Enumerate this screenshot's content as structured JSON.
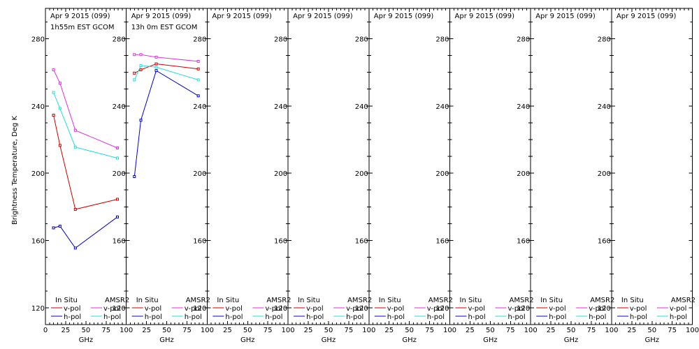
{
  "ylabel": "Brightness Temperature, Deg K",
  "xlabel": "GHz",
  "legend": {
    "left_title": "In Situ",
    "right_title": "AMSR2",
    "vpol": "v-pol",
    "hpol": "h-pol"
  },
  "colors": {
    "insitu_v": "#cc0000",
    "insitu_h": "#0000cc",
    "amsr2_v": "#dd33dd",
    "amsr2_h": "#22dddd"
  },
  "chart_data": [
    {
      "type": "line",
      "title": "Apr 9 2015 (099)",
      "subtitle": "1h55m EST GCOM",
      "xlim": [
        0,
        100
      ],
      "ylim": [
        110,
        298
      ],
      "xticks": [
        0,
        25,
        50,
        75,
        100
      ],
      "yticks": [
        120,
        160,
        200,
        240,
        280
      ],
      "series": [
        {
          "name": "In Situ v-pol",
          "x": [
            10,
            18,
            37,
            89
          ],
          "y": [
            234.5,
            216.5,
            178.5,
            184.5
          ]
        },
        {
          "name": "In Situ h-pol",
          "x": [
            10,
            18,
            37,
            89
          ],
          "y": [
            167.5,
            168.5,
            155.5,
            174
          ]
        },
        {
          "name": "AMSR2 v-pol",
          "x": [
            10,
            18,
            37,
            89
          ],
          "y": [
            261.5,
            253.5,
            225.5,
            215
          ]
        },
        {
          "name": "AMSR2 h-pol",
          "x": [
            10,
            18,
            37,
            89
          ],
          "y": [
            248,
            238.5,
            215.5,
            209
          ]
        }
      ]
    },
    {
      "type": "line",
      "title": "Apr 9 2015 (099)",
      "subtitle": "13h 0m EST GCOM",
      "xlim": [
        0,
        100
      ],
      "ylim": [
        110,
        298
      ],
      "xticks": [
        0,
        25,
        50,
        75,
        100
      ],
      "yticks": [
        120,
        160,
        200,
        240,
        280
      ],
      "series": [
        {
          "name": "In Situ v-pol",
          "x": [
            10,
            18,
            37,
            89
          ],
          "y": [
            259.5,
            261.5,
            265,
            262
          ]
        },
        {
          "name": "In Situ h-pol",
          "x": [
            10,
            18,
            37,
            89
          ],
          "y": [
            198,
            231.5,
            261,
            246
          ]
        },
        {
          "name": "AMSR2 v-pol",
          "x": [
            10,
            18,
            37,
            89
          ],
          "y": [
            270.5,
            270.5,
            269,
            266.5
          ]
        },
        {
          "name": "AMSR2 h-pol",
          "x": [
            10,
            18,
            37,
            89
          ],
          "y": [
            255.5,
            264,
            263,
            255.5
          ]
        }
      ]
    },
    {
      "type": "line",
      "title": "Apr 9 2015 (099)",
      "subtitle": "",
      "xlim": [
        0,
        100
      ],
      "ylim": [
        110,
        298
      ],
      "xticks": [
        0,
        25,
        50,
        75,
        100
      ],
      "yticks": [
        120,
        160,
        200,
        240,
        280
      ],
      "series": []
    },
    {
      "type": "line",
      "title": "Apr 9 2015 (099)",
      "subtitle": "",
      "xlim": [
        0,
        100
      ],
      "ylim": [
        110,
        298
      ],
      "xticks": [
        0,
        25,
        50,
        75,
        100
      ],
      "yticks": [
        120,
        160,
        200,
        240,
        280
      ],
      "series": []
    },
    {
      "type": "line",
      "title": "Apr 9 2015 (099)",
      "subtitle": "",
      "xlim": [
        0,
        100
      ],
      "ylim": [
        110,
        298
      ],
      "xticks": [
        0,
        25,
        50,
        75,
        100
      ],
      "yticks": [
        120,
        160,
        200,
        240,
        280
      ],
      "series": []
    },
    {
      "type": "line",
      "title": "Apr 9 2015 (099)",
      "subtitle": "",
      "xlim": [
        0,
        100
      ],
      "ylim": [
        110,
        298
      ],
      "xticks": [
        0,
        25,
        50,
        75,
        100
      ],
      "yticks": [
        120,
        160,
        200,
        240,
        280
      ],
      "series": []
    },
    {
      "type": "line",
      "title": "Apr 9 2015 (099)",
      "subtitle": "",
      "xlim": [
        0,
        100
      ],
      "ylim": [
        110,
        298
      ],
      "xticks": [
        0,
        25,
        50,
        75,
        100
      ],
      "yticks": [
        120,
        160,
        200,
        240,
        280
      ],
      "series": []
    },
    {
      "type": "line",
      "title": "Apr 9 2015 (099)",
      "subtitle": "",
      "xlim": [
        0,
        100
      ],
      "ylim": [
        110,
        298
      ],
      "xticks": [
        0,
        25,
        50,
        75,
        100
      ],
      "yticks": [
        120,
        160,
        200,
        240,
        280
      ],
      "series": []
    }
  ]
}
